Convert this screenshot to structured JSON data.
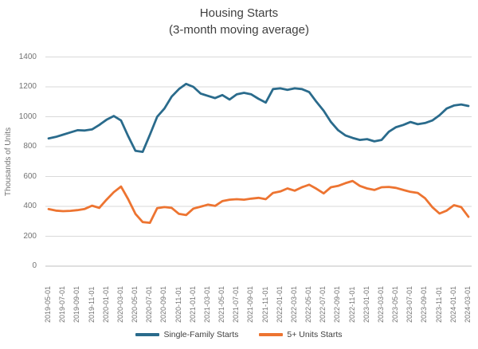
{
  "chart": {
    "title_line1": "Housing Starts",
    "title_line2": "(3-month moving average)"
  },
  "chart_data": {
    "type": "line",
    "title": "Housing Starts (3-month moving average)",
    "xlabel": "",
    "ylabel": "Thousands of Units",
    "ylim": [
      0,
      1400
    ],
    "ytick_step": 200,
    "ytick_labels": [
      "0",
      "200",
      "400",
      "600",
      "800",
      "1000",
      "1200",
      "1400"
    ],
    "grid": "horizontal",
    "legend_position": "bottom",
    "x_monthly_points": 59,
    "xtick_every_n_months": 2,
    "xtick_labels": [
      "2019-05-01",
      "2019-07-01",
      "2019-09-01",
      "2019-11-01",
      "2020-01-01",
      "2020-03-01",
      "2020-05-01",
      "2020-07-01",
      "2020-09-01",
      "2020-11-01",
      "2021-01-01",
      "2021-03-01",
      "2021-05-01",
      "2021-07-01",
      "2021-09-01",
      "2021-11-01",
      "2022-01-01",
      "2022-03-01",
      "2022-05-01",
      "2022-07-01",
      "2022-09-01",
      "2022-11-01",
      "2023-01-01",
      "2023-03-01",
      "2023-05-01",
      "2023-07-01",
      "2023-09-01",
      "2023-11-01",
      "2024-01-01",
      "2024-03-01"
    ],
    "series": [
      {
        "name": "Single-Family Starts",
        "color": "#2A6B8C",
        "values": [
          855,
          865,
          880,
          895,
          910,
          908,
          915,
          945,
          980,
          1005,
          975,
          870,
          772,
          765,
          880,
          1000,
          1055,
          1135,
          1185,
          1220,
          1200,
          1155,
          1140,
          1125,
          1145,
          1115,
          1150,
          1160,
          1150,
          1120,
          1095,
          1185,
          1190,
          1180,
          1190,
          1185,
          1165,
          1100,
          1040,
          965,
          910,
          875,
          858,
          845,
          850,
          835,
          845,
          900,
          930,
          945,
          965,
          950,
          958,
          975,
          1010,
          1055,
          1075,
          1082,
          1072
        ]
      },
      {
        "name": "5+ Units Starts",
        "color": "#ED7431",
        "values": [
          382,
          372,
          368,
          370,
          375,
          383,
          405,
          390,
          445,
          495,
          533,
          448,
          350,
          295,
          290,
          388,
          395,
          390,
          350,
          342,
          385,
          398,
          412,
          403,
          435,
          445,
          448,
          445,
          452,
          457,
          448,
          490,
          500,
          520,
          505,
          528,
          545,
          518,
          487,
          528,
          537,
          555,
          570,
          537,
          520,
          510,
          528,
          530,
          524,
          510,
          497,
          490,
          455,
          395,
          352,
          372,
          408,
          395,
          330
        ]
      }
    ]
  }
}
